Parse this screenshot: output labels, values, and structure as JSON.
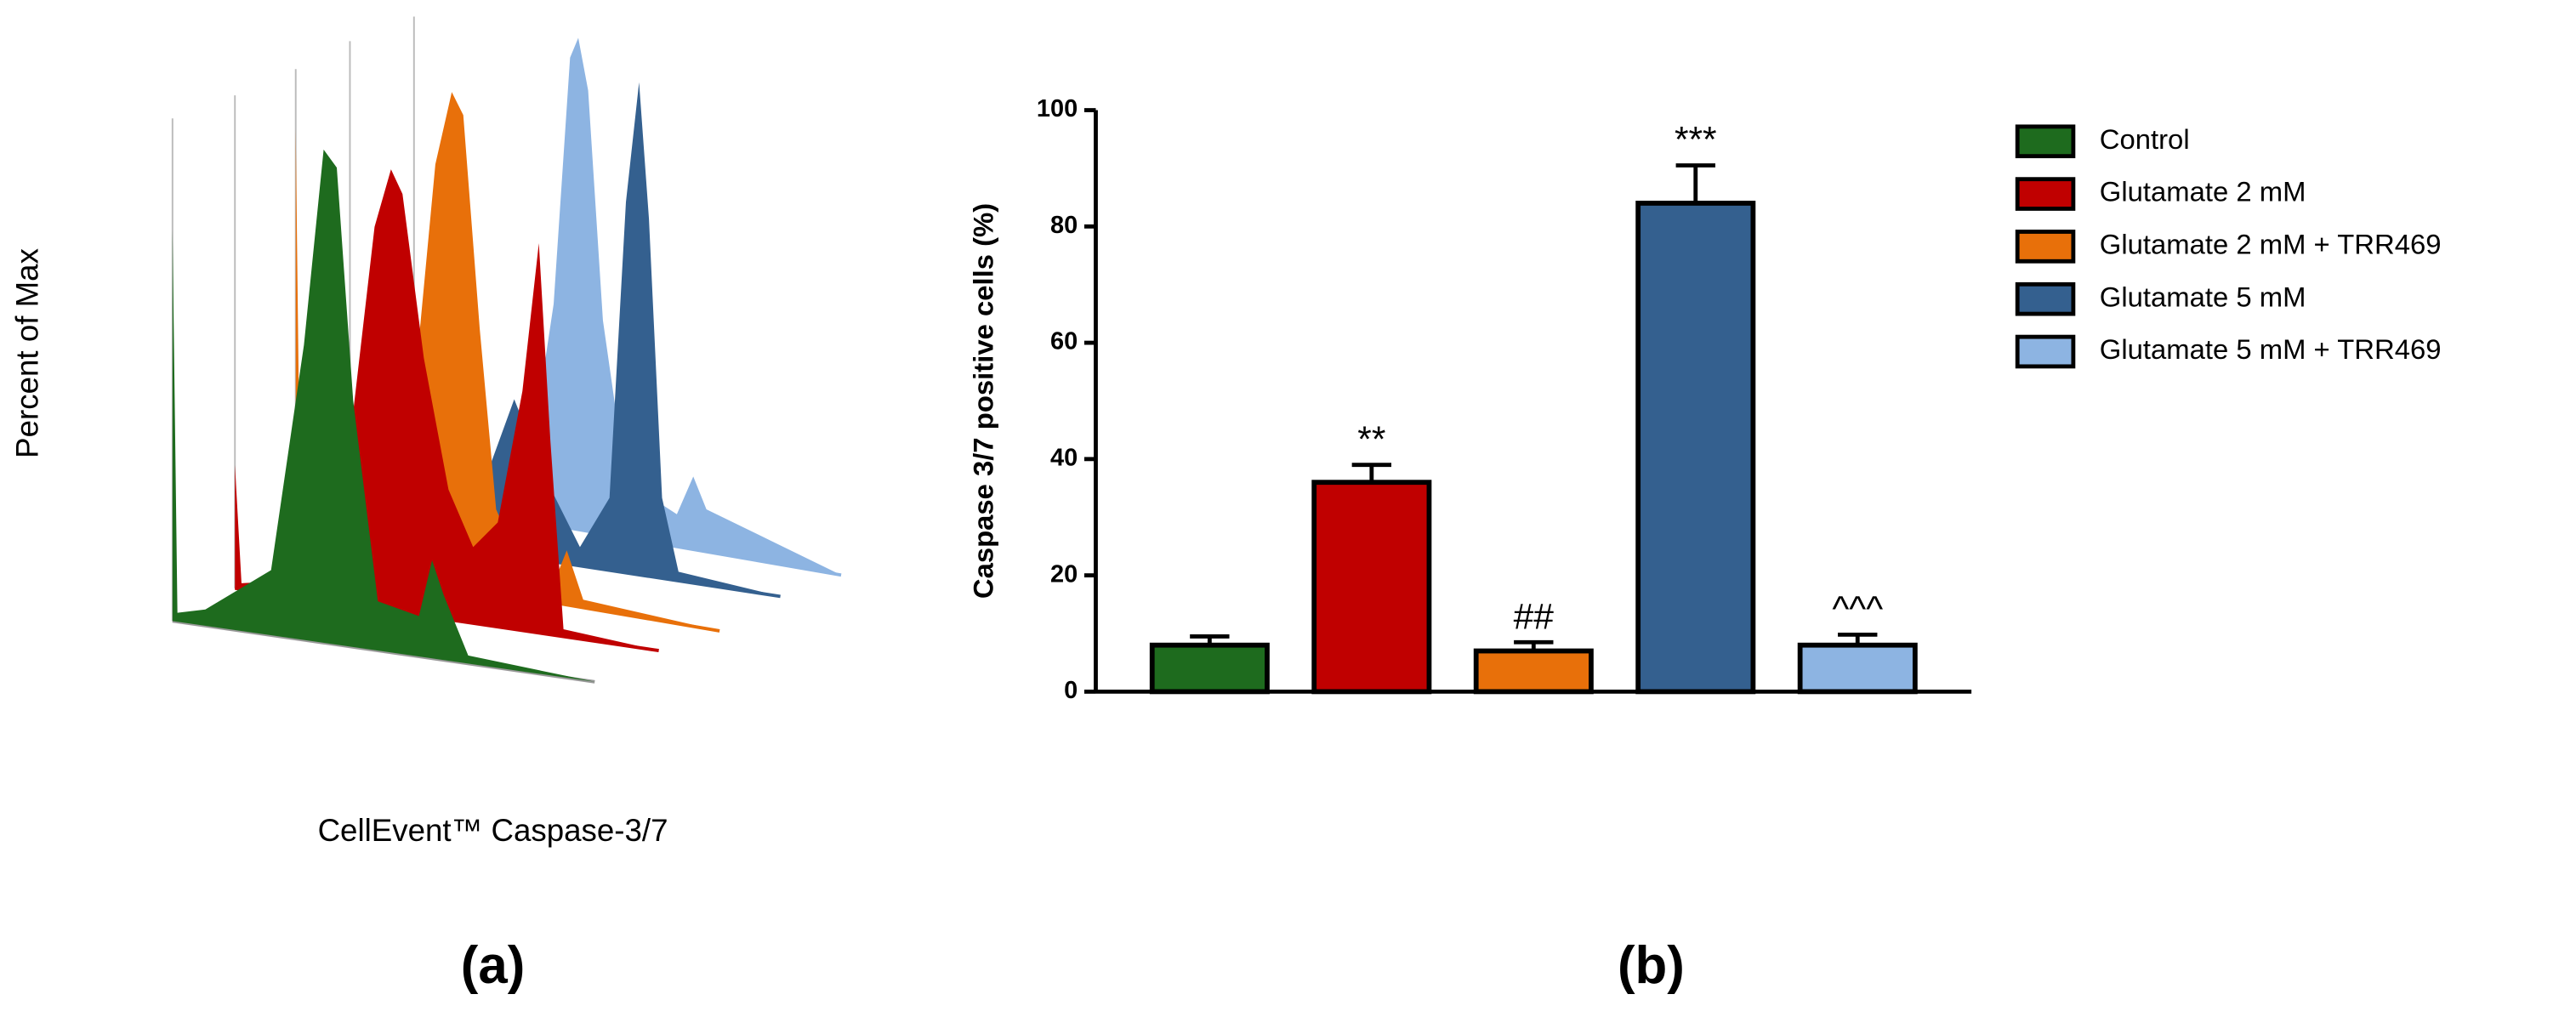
{
  "panel_a": {
    "ylabel": "Percent of Max",
    "xlabel": "CellEvent™ Caspase-3/7",
    "label": "(a)"
  },
  "chart_data": {
    "type": "bar",
    "label": "(b)",
    "ylabel": "Caspase 3/7 positive cells (%)",
    "categories": [
      "Control",
      "Glutamate 2 mM",
      "Glutamate 2 mM + TRR469",
      "Glutamate 5 mM",
      "Glutamate 5 mM + TRR469"
    ],
    "values": [
      8,
      36,
      7,
      84,
      8
    ],
    "errors": [
      1.5,
      3,
      1.5,
      6.5,
      1.8
    ],
    "colors": [
      "#1e6b1e",
      "#c00000",
      "#e8700a",
      "#34608f",
      "#8db4e2"
    ],
    "annotations": [
      null,
      "**",
      "##",
      "***",
      "^^^"
    ],
    "ylim": [
      0,
      100
    ],
    "yticks": [
      0,
      20,
      40,
      60,
      80,
      100
    ],
    "legend": "right"
  }
}
